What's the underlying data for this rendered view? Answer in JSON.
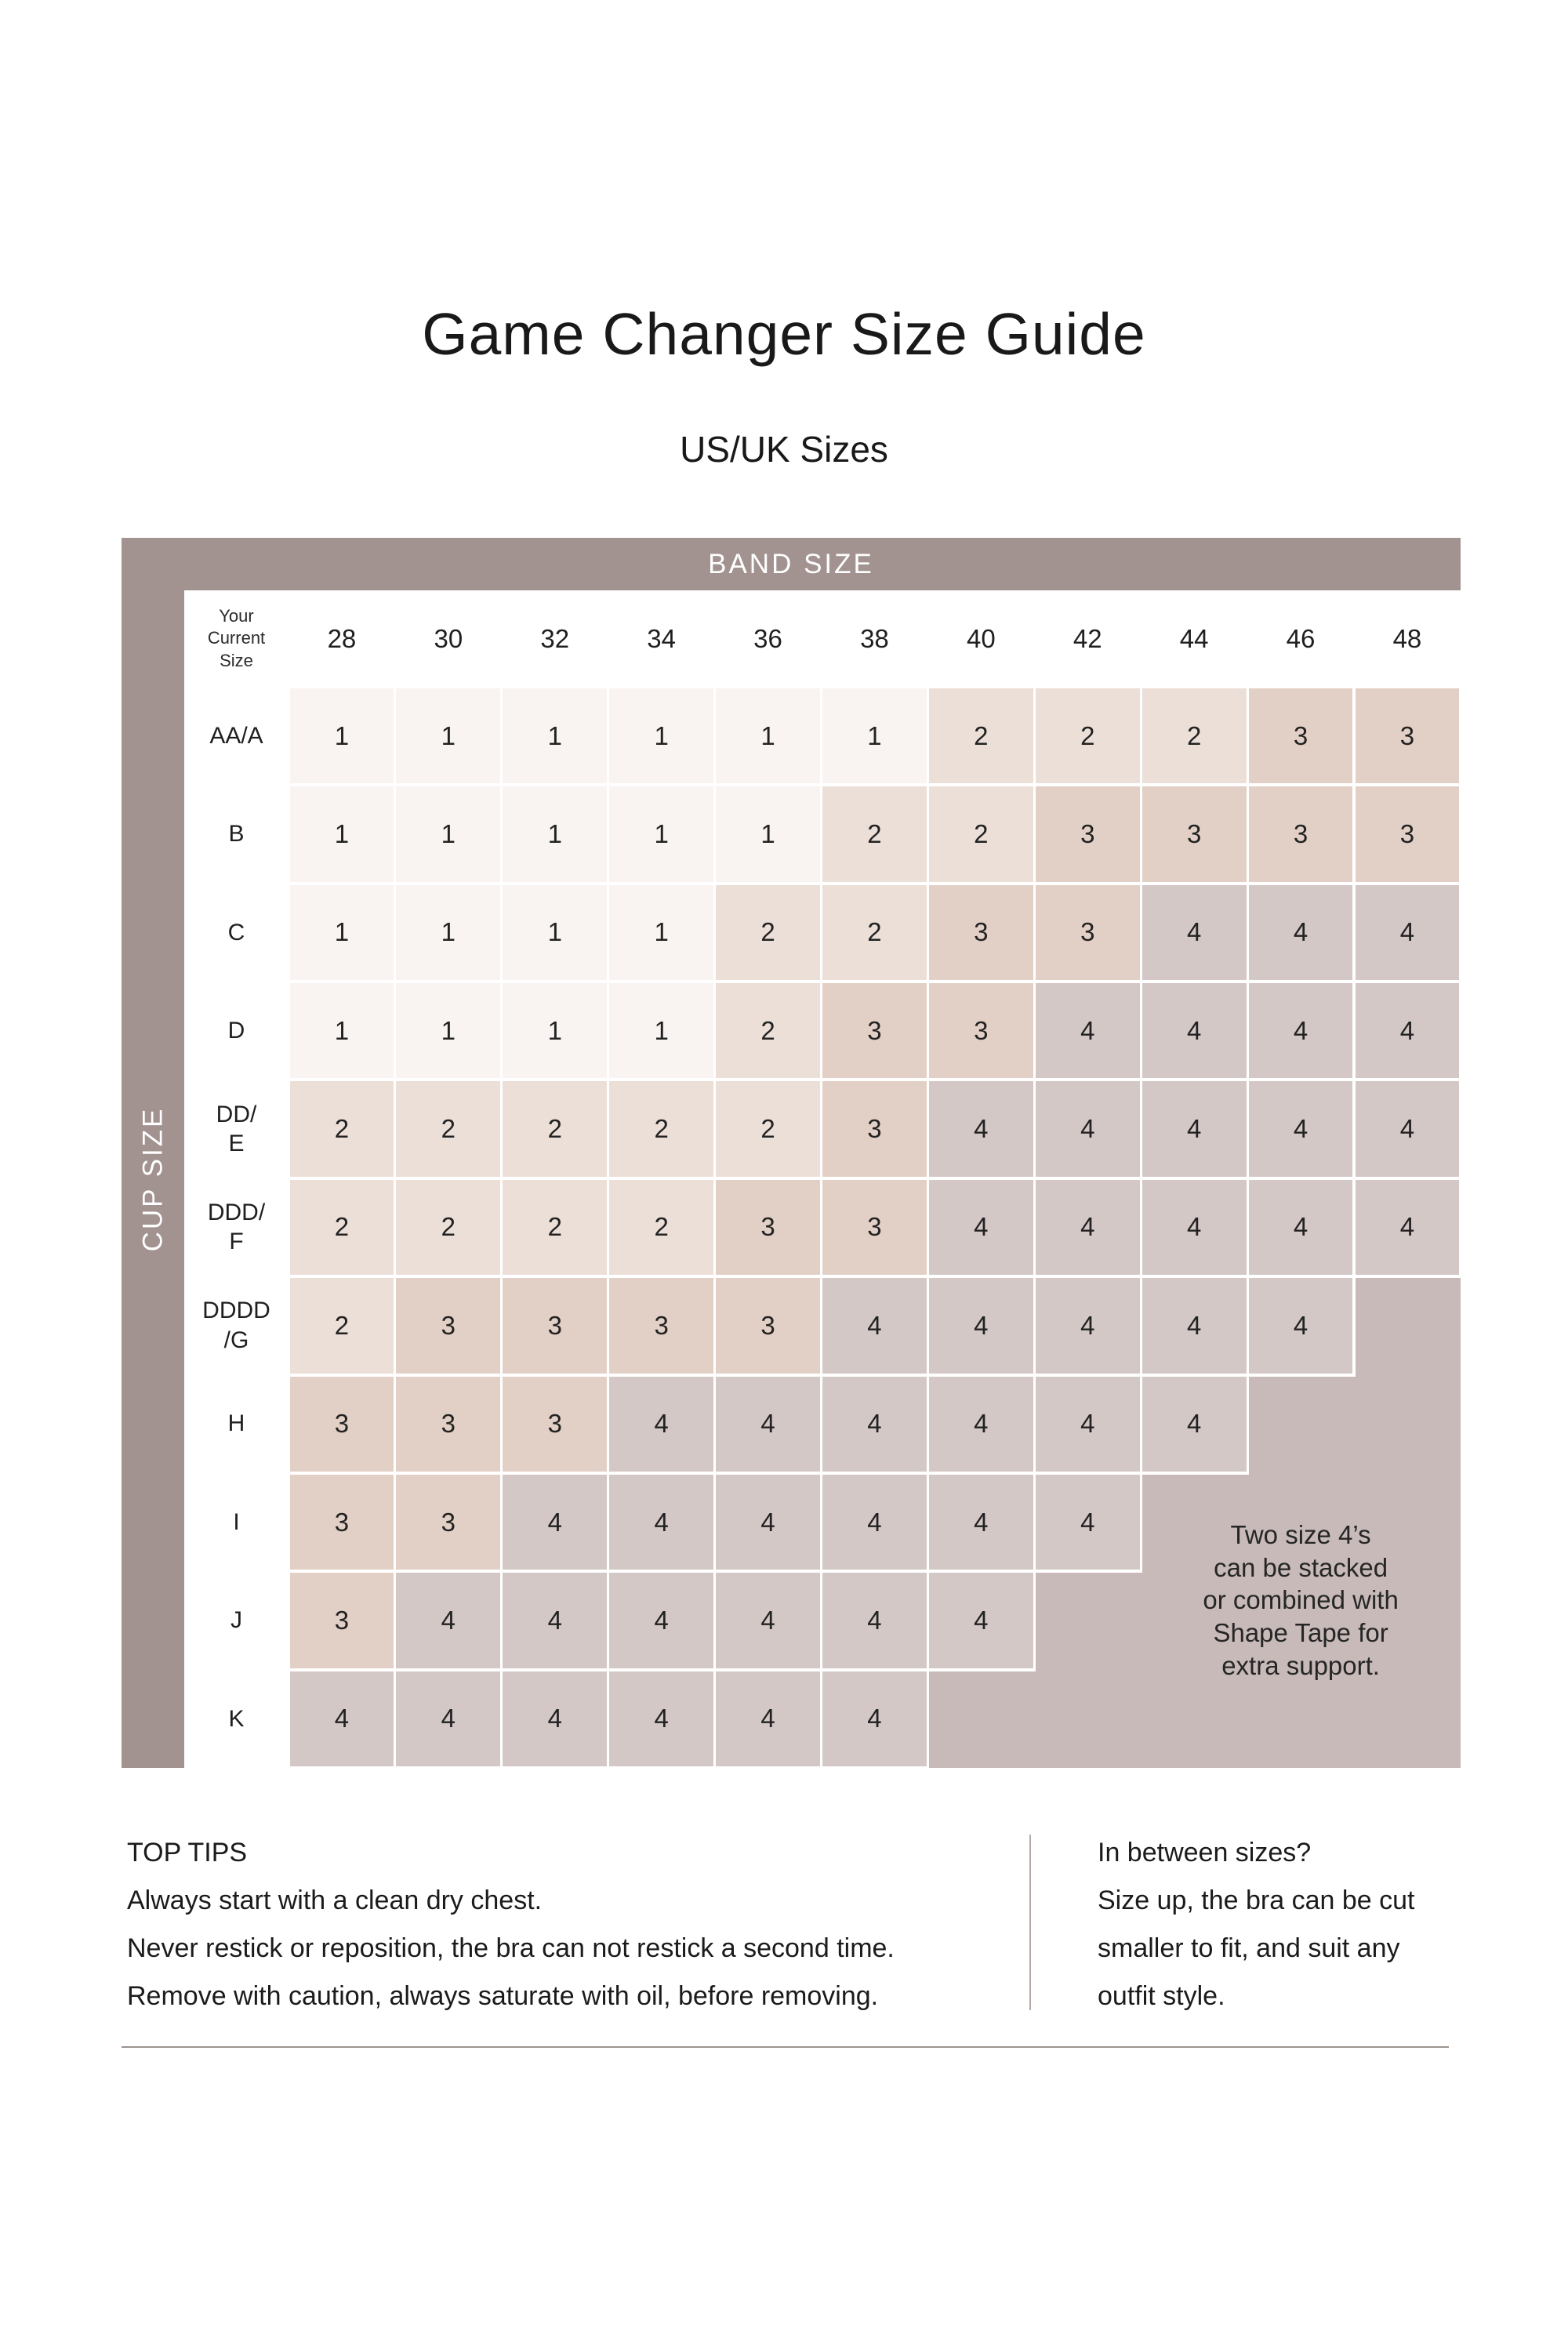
{
  "page": {
    "title": "Game Changer Size Guide",
    "subtitle": "US/UK Sizes"
  },
  "table": {
    "band_axis_label": "BAND SIZE",
    "cup_axis_label": "CUP SIZE",
    "corner_label": "Your\nCurrent\nSize",
    "band_sizes": [
      "28",
      "30",
      "32",
      "34",
      "36",
      "38",
      "40",
      "42",
      "44",
      "46",
      "48"
    ],
    "rows": [
      {
        "cup": "AA/A",
        "values": [
          "1",
          "1",
          "1",
          "1",
          "1",
          "1",
          "2",
          "2",
          "2",
          "3",
          "3"
        ]
      },
      {
        "cup": "B",
        "values": [
          "1",
          "1",
          "1",
          "1",
          "1",
          "2",
          "2",
          "3",
          "3",
          "3",
          "3"
        ]
      },
      {
        "cup": "C",
        "values": [
          "1",
          "1",
          "1",
          "1",
          "2",
          "2",
          "3",
          "3",
          "4",
          "4",
          "4"
        ]
      },
      {
        "cup": "D",
        "values": [
          "1",
          "1",
          "1",
          "1",
          "2",
          "3",
          "3",
          "4",
          "4",
          "4",
          "4"
        ]
      },
      {
        "cup": "DD/\nE",
        "values": [
          "2",
          "2",
          "2",
          "2",
          "2",
          "3",
          "4",
          "4",
          "4",
          "4",
          "4"
        ]
      },
      {
        "cup": "DDD/\nF",
        "values": [
          "2",
          "2",
          "2",
          "2",
          "3",
          "3",
          "4",
          "4",
          "4",
          "4",
          "4"
        ]
      },
      {
        "cup": "DDDD\n/G",
        "values": [
          "2",
          "3",
          "3",
          "3",
          "3",
          "4",
          "4",
          "4",
          "4",
          "4",
          ""
        ]
      },
      {
        "cup": "H",
        "values": [
          "3",
          "3",
          "3",
          "4",
          "4",
          "4",
          "4",
          "4",
          "4",
          "",
          ""
        ]
      },
      {
        "cup": "I",
        "values": [
          "3",
          "3",
          "4",
          "4",
          "4",
          "4",
          "4",
          "4",
          "",
          "",
          ""
        ]
      },
      {
        "cup": "J",
        "values": [
          "3",
          "4",
          "4",
          "4",
          "4",
          "4",
          "4",
          "",
          "",
          "",
          ""
        ]
      },
      {
        "cup": "K",
        "values": [
          "4",
          "4",
          "4",
          "4",
          "4",
          "4",
          "",
          "",
          "",
          "",
          ""
        ]
      }
    ],
    "note": "Two size 4’s\ncan be stacked\nor combined with\nShape Tape for\nextra support.",
    "colors": {
      "band_header": "#a29290",
      "value_1": "#f9f4f2",
      "value_2": "#ecdfd8",
      "value_3": "#e2d0c6",
      "value_4": "#d3c8c6",
      "empty_region": "#c7bab8"
    }
  },
  "tips": {
    "heading": "TOP TIPS",
    "lines": [
      "Always start with a clean dry chest.",
      "Never restick or reposition, the bra can not restick a second time.",
      "Remove with caution, always saturate with oil, before removing."
    ]
  },
  "sizing_note": {
    "heading": "In between sizes?",
    "lines": [
      "Size up, the bra can be cut",
      "smaller to fit, and suit any",
      "outfit style."
    ]
  }
}
